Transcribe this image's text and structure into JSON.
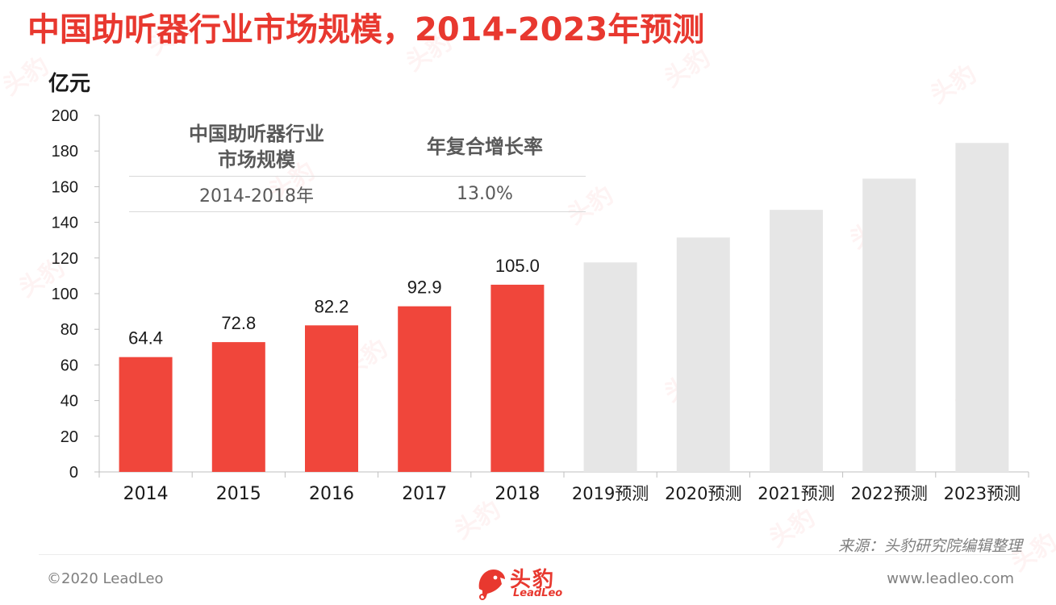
{
  "title": "中国助听器行业市场规模，2014-2023年预测",
  "chart_data": {
    "type": "bar",
    "ylabel": "亿元",
    "ylim": [
      0,
      200
    ],
    "yticks": [
      0,
      20,
      40,
      60,
      80,
      100,
      120,
      140,
      160,
      180,
      200
    ],
    "categories": [
      "2014",
      "2015",
      "2016",
      "2017",
      "2018",
      "2019预测",
      "2020预测",
      "2021预测",
      "2022预测",
      "2023预测"
    ],
    "values": [
      64.4,
      72.8,
      82.2,
      92.9,
      105.0,
      117.5,
      131.5,
      147.0,
      164.5,
      184.5
    ],
    "data_labels": [
      "64.4",
      "72.8",
      "82.2",
      "92.9",
      "105.0",
      "",
      "",
      "",
      "",
      ""
    ],
    "forecast_start_index": 5,
    "colors": {
      "actual": "#f0463b",
      "forecast": "#e6e6e6"
    },
    "grid": false
  },
  "cagr_table": {
    "headers": [
      "中国助听器行业\n市场规模",
      "年复合增长率"
    ],
    "row": {
      "period": "2014-2018年",
      "rate": "13.0%"
    }
  },
  "source": "来源：头豹研究院编辑整理",
  "footer": {
    "copyright": "©2020 LeadLeo",
    "website": "www.leadleo.com",
    "brand_cn": "头豹",
    "brand_en": "LeadLeo"
  },
  "watermark_text": "头豹",
  "brand_color": "#e8382f"
}
